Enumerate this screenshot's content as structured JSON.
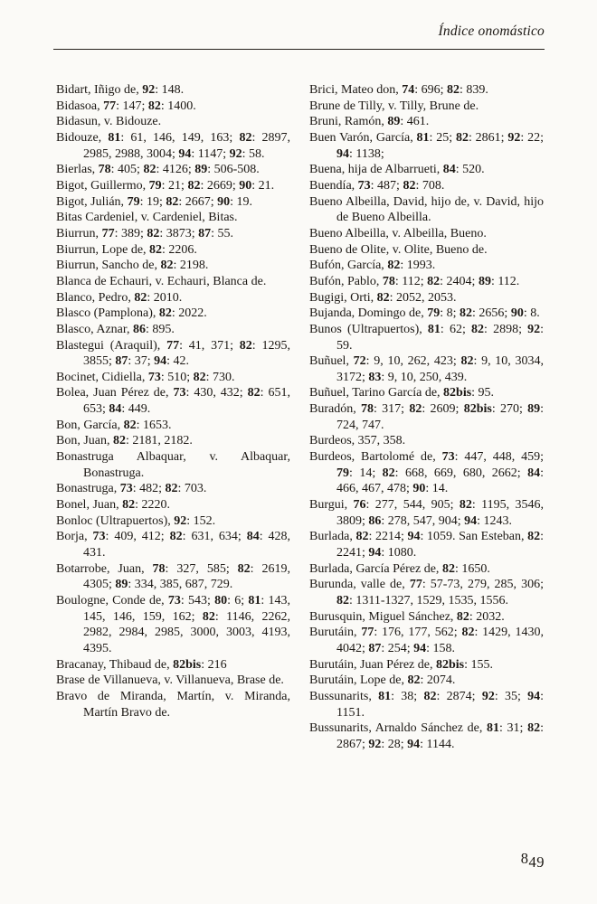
{
  "page": {
    "header_title": "Índice onomástico",
    "page_number": "849",
    "page_number_first": "8",
    "page_number_rest": "49"
  },
  "colors": {
    "paper": "#fbfaf7",
    "ink": "#1b1713"
  },
  "columns": {
    "left": [
      "Bidart, Iñigo de, **92**: 148.",
      "Bidasoa, **77**: 147; **82**: 1400.",
      "Bidasun, v. Bidouze.",
      "Bidouze, **81**: 61, 146, 149, 163; **82**: 2897, 2985, 2988, 3004; **94**: 1147; **92**: 58.",
      "Bierlas, **78**: 405; **82**: 4126; **89**: 506-508.",
      "Bigot, Guillermo, **79**: 21; **82**: 2669; **90**: 21.",
      "Bigot, Julián, **79**: 19; **82**: 2667; **90**: 19.",
      "Bitas Cardeniel, v. Cardeniel, Bitas.",
      "Biurrun, **77**: 389; **82**: 3873; **87**: 55.",
      "Biurrun, Lope de, **82**: 2206.",
      "Biurrun, Sancho de, **82**: 2198.",
      "Blanca de Echauri, v. Echauri, Blanca de.",
      "Blanco, Pedro, **82**: 2010.",
      "Blasco (Pamplona), **82**: 2022.",
      "Blasco, Aznar, **86**: 895.",
      "Blastegui (Araquil), **77**: 41, 371; **82**: 1295, 3855; **87**: 37; **94**: 42.",
      "Bocinet, Cidiella, **73**: 510; **82**: 730.",
      "Bolea, Juan Pérez de, **73**: 430, 432; **82**: 651, 653; **84**: 449.",
      "Bon, García, **82**: 1653.",
      "Bon, Juan, **82**: 2181, 2182.",
      "Bonastruga Albaquar, v. Albaquar, Bonastruga.",
      "Bonastruga, **73**: 482; **82**: 703.",
      "Bonel, Juan, **82**: 2220.",
      "Bonloc (Ultrapuertos), **92**: 152.",
      "Borja, **73**: 409, 412; **82**: 631, 634; **84**: 428, 431.",
      "Botarrobe, Juan, **78**: 327, 585; **82**: 2619, 4305; **89**: 334, 385, 687, 729.",
      "Boulogne, Conde de, **73**: 543; **80**: 6; **81**: 143, 145, 146, 159, 162; **82**: 1146, 2262, 2982, 2984, 2985, 3000, 3003, 4193, 4395.",
      "Bracanay, Thibaud de, **82bis**: 216",
      "Brase de Villanueva, v. Villanueva, Brase de.",
      "Bravo de Miranda, Martín, v. Miranda, Martín Bravo de."
    ],
    "right": [
      "Brici, Mateo don, **74**: 696; **82**: 839.",
      "Brune de Tilly, v. Tilly, Brune de.",
      "Bruni, Ramón, **89**: 461.",
      "Buen Varón, García, **81**: 25; **82**: 2861; **92**: 22; **94**: 1138;",
      "Buena, hija de Albarrueti, **84**: 520.",
      "Buendía, **73**: 487; **82**: 708.",
      "Bueno Albeilla, David, hijo de, v. David, hijo de Bueno Albeilla.",
      "Bueno Albeilla, v. Albeilla, Bueno.",
      "Bueno de Olite, v. Olite, Bueno de.",
      "Bufón, García, **82**: 1993.",
      "Bufón, Pablo, **78**: 112; **82**: 2404; **89**: 112.",
      "Bugigi, Orti, **82**: 2052, 2053.",
      "Bujanda, Domingo de, **79**: 8; **82**: 2656; **90**: 8.",
      "Bunos (Ultrapuertos), **81**: 62; **82**: 2898; **92**: 59.",
      "Buñuel, **72**: 9, 10, 262, 423; **82**: 9, 10, 3034, 3172; **83**: 9, 10, 250, 439.",
      "Buñuel, Tarino García de, **82bis**: 95.",
      "Buradón, **78**: 317; **82**: 2609; **82bis**: 270; **89**: 724, 747.",
      "Burdeos, 357, 358.",
      "Burdeos, Bartolomé de, **73**: 447, 448, 459; **79**: 14; **82**: 668, 669, 680, 2662; **84**: 466, 467, 478; **90**: 14.",
      "Burgui, **76**: 277, 544, 905; **82**: 1195, 3546, 3809; **86**: 278, 547, 904; **94**: 1243.",
      "Burlada, **82**: 2214; **94**: 1059. San Esteban, **82**: 2241; **94**: 1080.",
      "Burlada, García Pérez de, **82**: 1650.",
      "Burunda, valle de, **77**: 57-73, 279, 285, 306; **82**: 1311-1327, 1529, 1535, 1556.",
      "Burusquin, Miguel Sánchez, **82**: 2032.",
      "Burutáin, **77**: 176, 177, 562; **82**: 1429, 1430, 4042; **87**: 254; **94**: 158.",
      "Burutáin, Juan Pérez de, **82bis**: 155.",
      "Burutáin, Lope de, **82**: 2074.",
      "Bussunarits, **81**: 38; **82**: 2874; **92**: 35; **94**: 1151.",
      "Bussunarits, Arnaldo Sánchez de, **81**: 31; **82**: 2867; **92**: 28; **94**: 1144."
    ]
  }
}
